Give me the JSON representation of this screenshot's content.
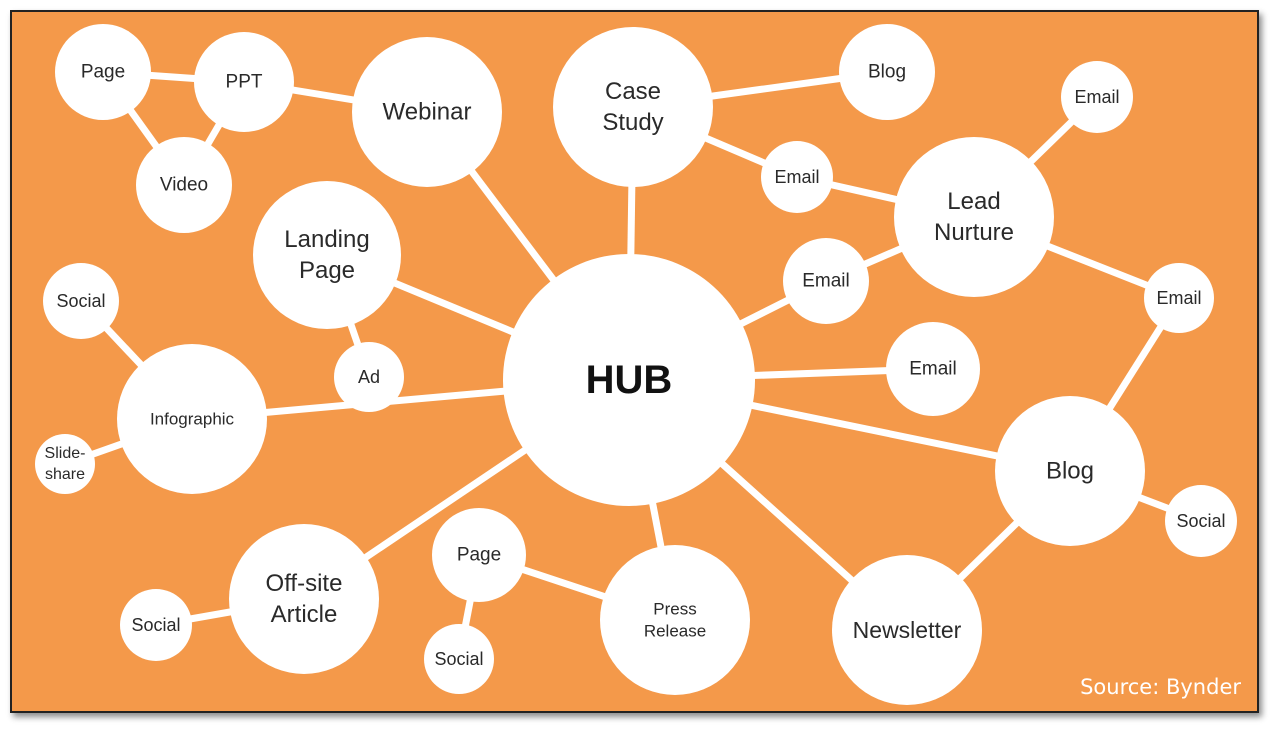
{
  "background_color": "#F4994A",
  "node_color": "#FFFFFF",
  "edge_color": "#FFFFFF",
  "source": "Source: Bynder",
  "nodes": [
    {
      "id": "hub",
      "lines": [
        "HUB"
      ]
    },
    {
      "id": "webinar",
      "lines": [
        "Webinar"
      ]
    },
    {
      "id": "case-study",
      "lines": [
        "Case",
        "Study"
      ]
    },
    {
      "id": "landing-page",
      "lines": [
        "Landing",
        "Page"
      ]
    },
    {
      "id": "page-top",
      "lines": [
        "Page"
      ]
    },
    {
      "id": "ppt",
      "lines": [
        "PPT"
      ]
    },
    {
      "id": "video",
      "lines": [
        "Video"
      ]
    },
    {
      "id": "blog-top",
      "lines": [
        "Blog"
      ]
    },
    {
      "id": "email-top-right",
      "lines": [
        "Email"
      ]
    },
    {
      "id": "email-case",
      "lines": [
        "Email"
      ]
    },
    {
      "id": "lead-nurture",
      "lines": [
        "Lead",
        "Nurture"
      ]
    },
    {
      "id": "email-mid",
      "lines": [
        "Email"
      ]
    },
    {
      "id": "email-right",
      "lines": [
        "Email"
      ]
    },
    {
      "id": "email-hub",
      "lines": [
        "Email"
      ]
    },
    {
      "id": "social-left",
      "lines": [
        "Social"
      ]
    },
    {
      "id": "ad",
      "lines": [
        "Ad"
      ]
    },
    {
      "id": "infographic",
      "lines": [
        "Infographic"
      ]
    },
    {
      "id": "slideshare",
      "lines": [
        "Slide-",
        "share"
      ]
    },
    {
      "id": "blog",
      "lines": [
        "Blog"
      ]
    },
    {
      "id": "social-blog",
      "lines": [
        "Social"
      ]
    },
    {
      "id": "offsite-article",
      "lines": [
        "Off-site",
        "Article"
      ]
    },
    {
      "id": "social-article",
      "lines": [
        "Social"
      ]
    },
    {
      "id": "page-press",
      "lines": [
        "Page"
      ]
    },
    {
      "id": "social-press",
      "lines": [
        "Social"
      ]
    },
    {
      "id": "press-release",
      "lines": [
        "Press",
        "Release"
      ]
    },
    {
      "id": "newsletter",
      "lines": [
        "Newsletter"
      ]
    }
  ],
  "edges": [
    [
      "hub",
      "webinar"
    ],
    [
      "hub",
      "case-study"
    ],
    [
      "hub",
      "landing-page"
    ],
    [
      "hub",
      "infographic"
    ],
    [
      "hub",
      "offsite-article"
    ],
    [
      "hub",
      "press-release"
    ],
    [
      "hub",
      "newsletter"
    ],
    [
      "hub",
      "blog"
    ],
    [
      "hub",
      "email-hub"
    ],
    [
      "hub",
      "email-mid"
    ],
    [
      "webinar",
      "ppt"
    ],
    [
      "page-top",
      "ppt"
    ],
    [
      "page-top",
      "video"
    ],
    [
      "ppt",
      "video"
    ],
    [
      "case-study",
      "blog-top"
    ],
    [
      "case-study",
      "email-case"
    ],
    [
      "email-case",
      "lead-nurture"
    ],
    [
      "email-mid",
      "lead-nurture"
    ],
    [
      "lead-nurture",
      "email-top-right"
    ],
    [
      "lead-nurture",
      "email-right"
    ],
    [
      "email-right",
      "blog"
    ],
    [
      "blog",
      "social-blog"
    ],
    [
      "blog",
      "newsletter"
    ],
    [
      "landing-page",
      "ad"
    ],
    [
      "infographic",
      "social-left"
    ],
    [
      "infographic",
      "slideshare"
    ],
    [
      "offsite-article",
      "social-article"
    ],
    [
      "press-release",
      "page-press"
    ],
    [
      "page-press",
      "social-press"
    ]
  ]
}
